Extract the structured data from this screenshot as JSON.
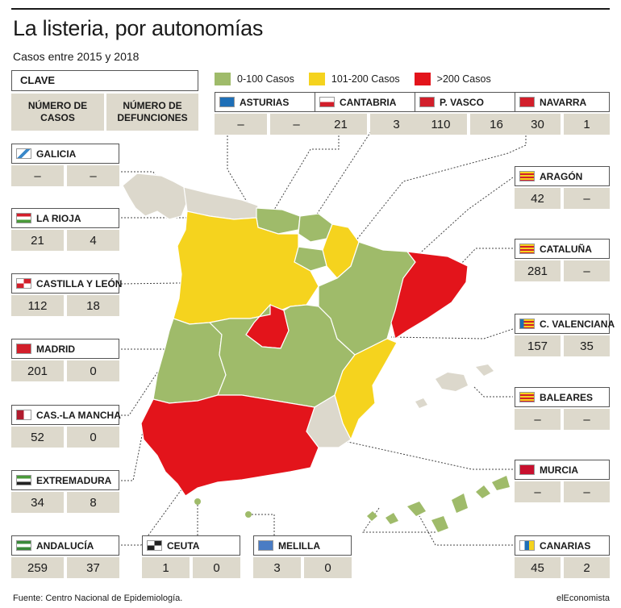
{
  "title": "La listeria, por autonomías",
  "subtitle": "Casos entre 2015 y 2018",
  "key": {
    "label": "CLAVE",
    "cases_header": "NÚMERO DE CASOS",
    "deaths_header": "NÚMERO DE DEFUNCIONES"
  },
  "legend": [
    {
      "label": "0-100 Casos",
      "color": "#9fbb6a"
    },
    {
      "label": "101-200 Casos",
      "color": "#f5d31e"
    },
    {
      "label": ">200 Casos",
      "color": "#e3141b"
    }
  ],
  "nodata_color": "#dcd8cc",
  "regions": {
    "asturias": {
      "name": "ASTURIAS",
      "cases": "–",
      "deaths": "–"
    },
    "cantabria": {
      "name": "CANTABRIA",
      "cases": "21",
      "deaths": "3"
    },
    "pvasco": {
      "name": "P. VASCO",
      "cases": "110",
      "deaths": "16"
    },
    "navarra": {
      "name": "NAVARRA",
      "cases": "30",
      "deaths": "1"
    },
    "galicia": {
      "name": "GALICIA",
      "cases": "–",
      "deaths": "–"
    },
    "aragon": {
      "name": "ARAGÓN",
      "cases": "42",
      "deaths": "–"
    },
    "larioja": {
      "name": "LA RIOJA",
      "cases": "21",
      "deaths": "4"
    },
    "cataluna": {
      "name": "CATALUÑA",
      "cases": "281",
      "deaths": "–"
    },
    "castillaleon": {
      "name": "CASTILLA Y LEÓN",
      "cases": "112",
      "deaths": "18"
    },
    "cvalenciana": {
      "name": "C. VALENCIANA",
      "cases": "157",
      "deaths": "35"
    },
    "madrid": {
      "name": "MADRID",
      "cases": "201",
      "deaths": "0"
    },
    "baleares": {
      "name": "BALEARES",
      "cases": "–",
      "deaths": "–"
    },
    "clamancha": {
      "name": "CAS.-LA MANCHA",
      "cases": "52",
      "deaths": "0"
    },
    "murcia": {
      "name": "MURCIA",
      "cases": "–",
      "deaths": "–"
    },
    "extremadura": {
      "name": "EXTREMADURA",
      "cases": "34",
      "deaths": "8"
    },
    "andalucia": {
      "name": "ANDALUCÍA",
      "cases": "259",
      "deaths": "37"
    },
    "ceuta": {
      "name": "CEUTA",
      "cases": "1",
      "deaths": "0"
    },
    "melilla": {
      "name": "MELILLA",
      "cases": "3",
      "deaths": "0"
    },
    "canarias": {
      "name": "CANARIAS",
      "cases": "45",
      "deaths": "2"
    }
  },
  "source": "Fuente: Centro Nacional de Epidemiología.",
  "brand": "elEconomista"
}
